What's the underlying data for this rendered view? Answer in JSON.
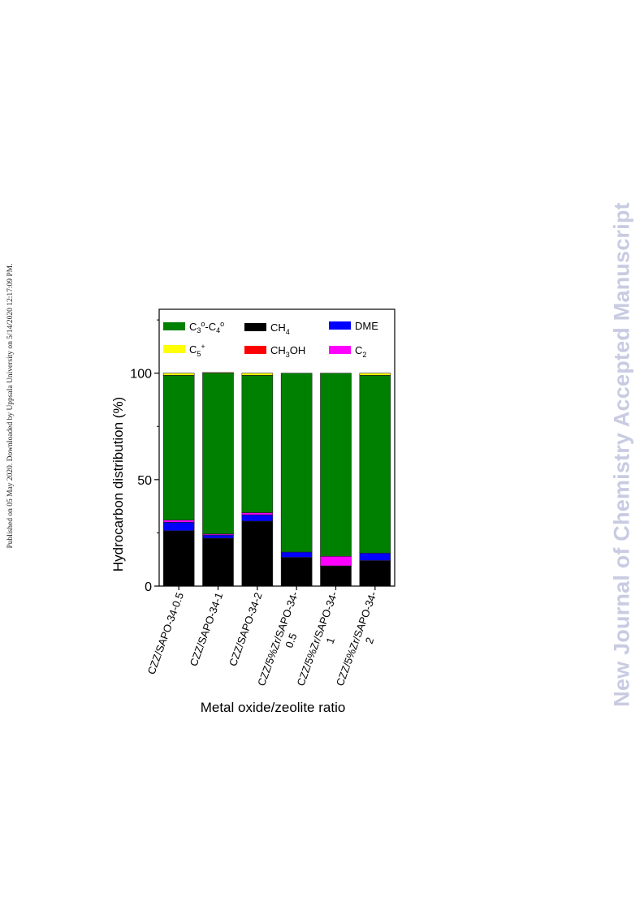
{
  "side_note": "Published on 05 May 2020. Downloaded by Uppsala University on 5/14/2020 12:17:09 PM.",
  "watermark": "New Journal of Chemistry Accepted Manuscript",
  "colors": {
    "C3-C4": "#008000",
    "CH4": "#000000",
    "DME": "#0000ff",
    "C5+": "#ffff00",
    "CH3OH": "#ff0000",
    "C2": "#ff00ff"
  },
  "chart_data": {
    "type": "bar",
    "stacked": true,
    "title": "",
    "xlabel": "Metal oxide/zeolite ratio",
    "ylabel": "Hydrocarbon distribution (%)",
    "ylim": [
      0,
      130
    ],
    "yticks": [
      0,
      50,
      100
    ],
    "legend_placement": "top, inside plot, 3 columns",
    "categories": [
      [
        "CZZ/SAPO-34-0.5"
      ],
      [
        "CZZ/SAPO-34-1"
      ],
      [
        "CZZ/SAPO-34-2"
      ],
      [
        "CZZ/5%Zr/SAPO-34-",
        "0.5"
      ],
      [
        "CZZ/5%Zr/SAPO-34-",
        "1"
      ],
      [
        "CZZ/5%Zr/SAPO-34-",
        "2"
      ]
    ],
    "series": [
      {
        "name": "CH",
        "sub": "4",
        "sup": "",
        "key": "CH4",
        "values": [
          26,
          22.5,
          30.5,
          13.5,
          9.5,
          12
        ]
      },
      {
        "name": "DME",
        "sub": "",
        "sup": "",
        "key": "DME",
        "values": [
          4,
          1.5,
          3,
          2.5,
          0,
          3.5
        ]
      },
      {
        "name": "CH",
        "sub": "3",
        "sup": "",
        "tail": "OH",
        "key": "CH3OH",
        "values": [
          0,
          0,
          0,
          0,
          0,
          0
        ]
      },
      {
        "name": "C",
        "sub": "2",
        "sup": "",
        "key": "C2",
        "values": [
          1,
          0.5,
          1,
          0,
          4.5,
          0
        ]
      },
      {
        "name": "C3o-C4o",
        "key": "C3-C4",
        "values": [
          68,
          75.5,
          64.5,
          84,
          86,
          83.5
        ]
      },
      {
        "name": "C",
        "sub": "5",
        "sup": "+",
        "key": "C5+",
        "values": [
          1,
          0.3,
          1,
          0,
          0,
          1
        ]
      }
    ],
    "legend_order": [
      "C3-C4",
      "CH4",
      "DME",
      "C5+",
      "CH3OH",
      "C2"
    ]
  }
}
